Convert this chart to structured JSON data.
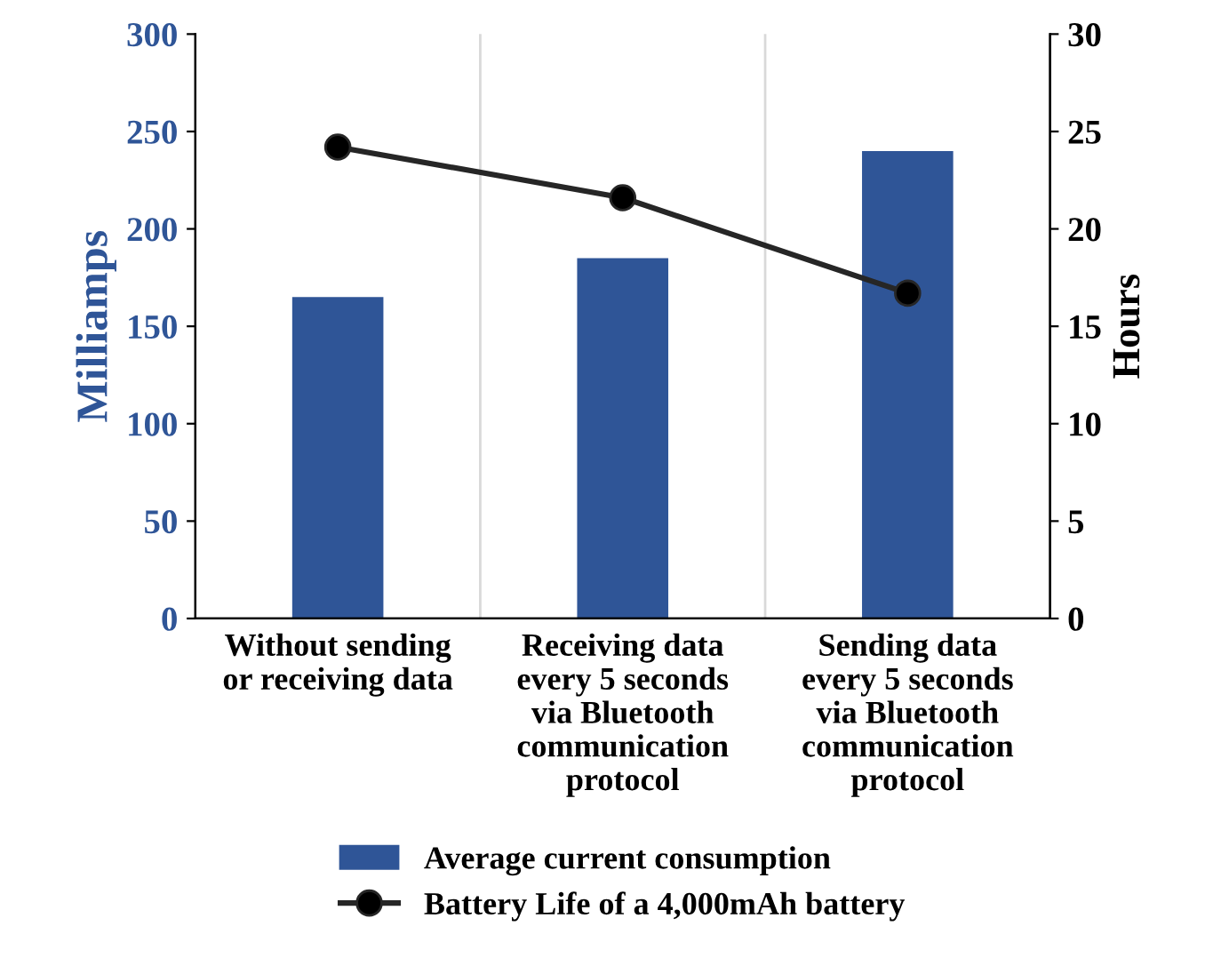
{
  "chart_data": {
    "type": "bar",
    "ylabel": "Milliamps",
    "y2label": "Hours",
    "categories": [
      "Without sending or receiving data",
      "Receiving data every 5 seconds via Bluetooth communication protocol",
      "Sending data every 5 seconds via Bluetooth communication protocol"
    ],
    "series": [
      {
        "name": "Average current consumption",
        "color": "#2f5597",
        "values": [
          165,
          185,
          240
        ]
      },
      {
        "name": "Battery Life of a 4,000mAh battery",
        "type": "line",
        "axis": "y2",
        "color": "#262626",
        "marker": "circle",
        "line_style": "solid",
        "values": [
          24.2,
          21.6,
          16.7
        ]
      }
    ],
    "ylim": [
      0,
      300
    ],
    "yticks": [
      0,
      50,
      100,
      150,
      200,
      250,
      300
    ],
    "y2lim": [
      0,
      30
    ],
    "y2ticks": [
      0,
      5,
      10,
      15,
      20,
      25,
      30
    ],
    "grid": "x",
    "legend": "bottom"
  }
}
